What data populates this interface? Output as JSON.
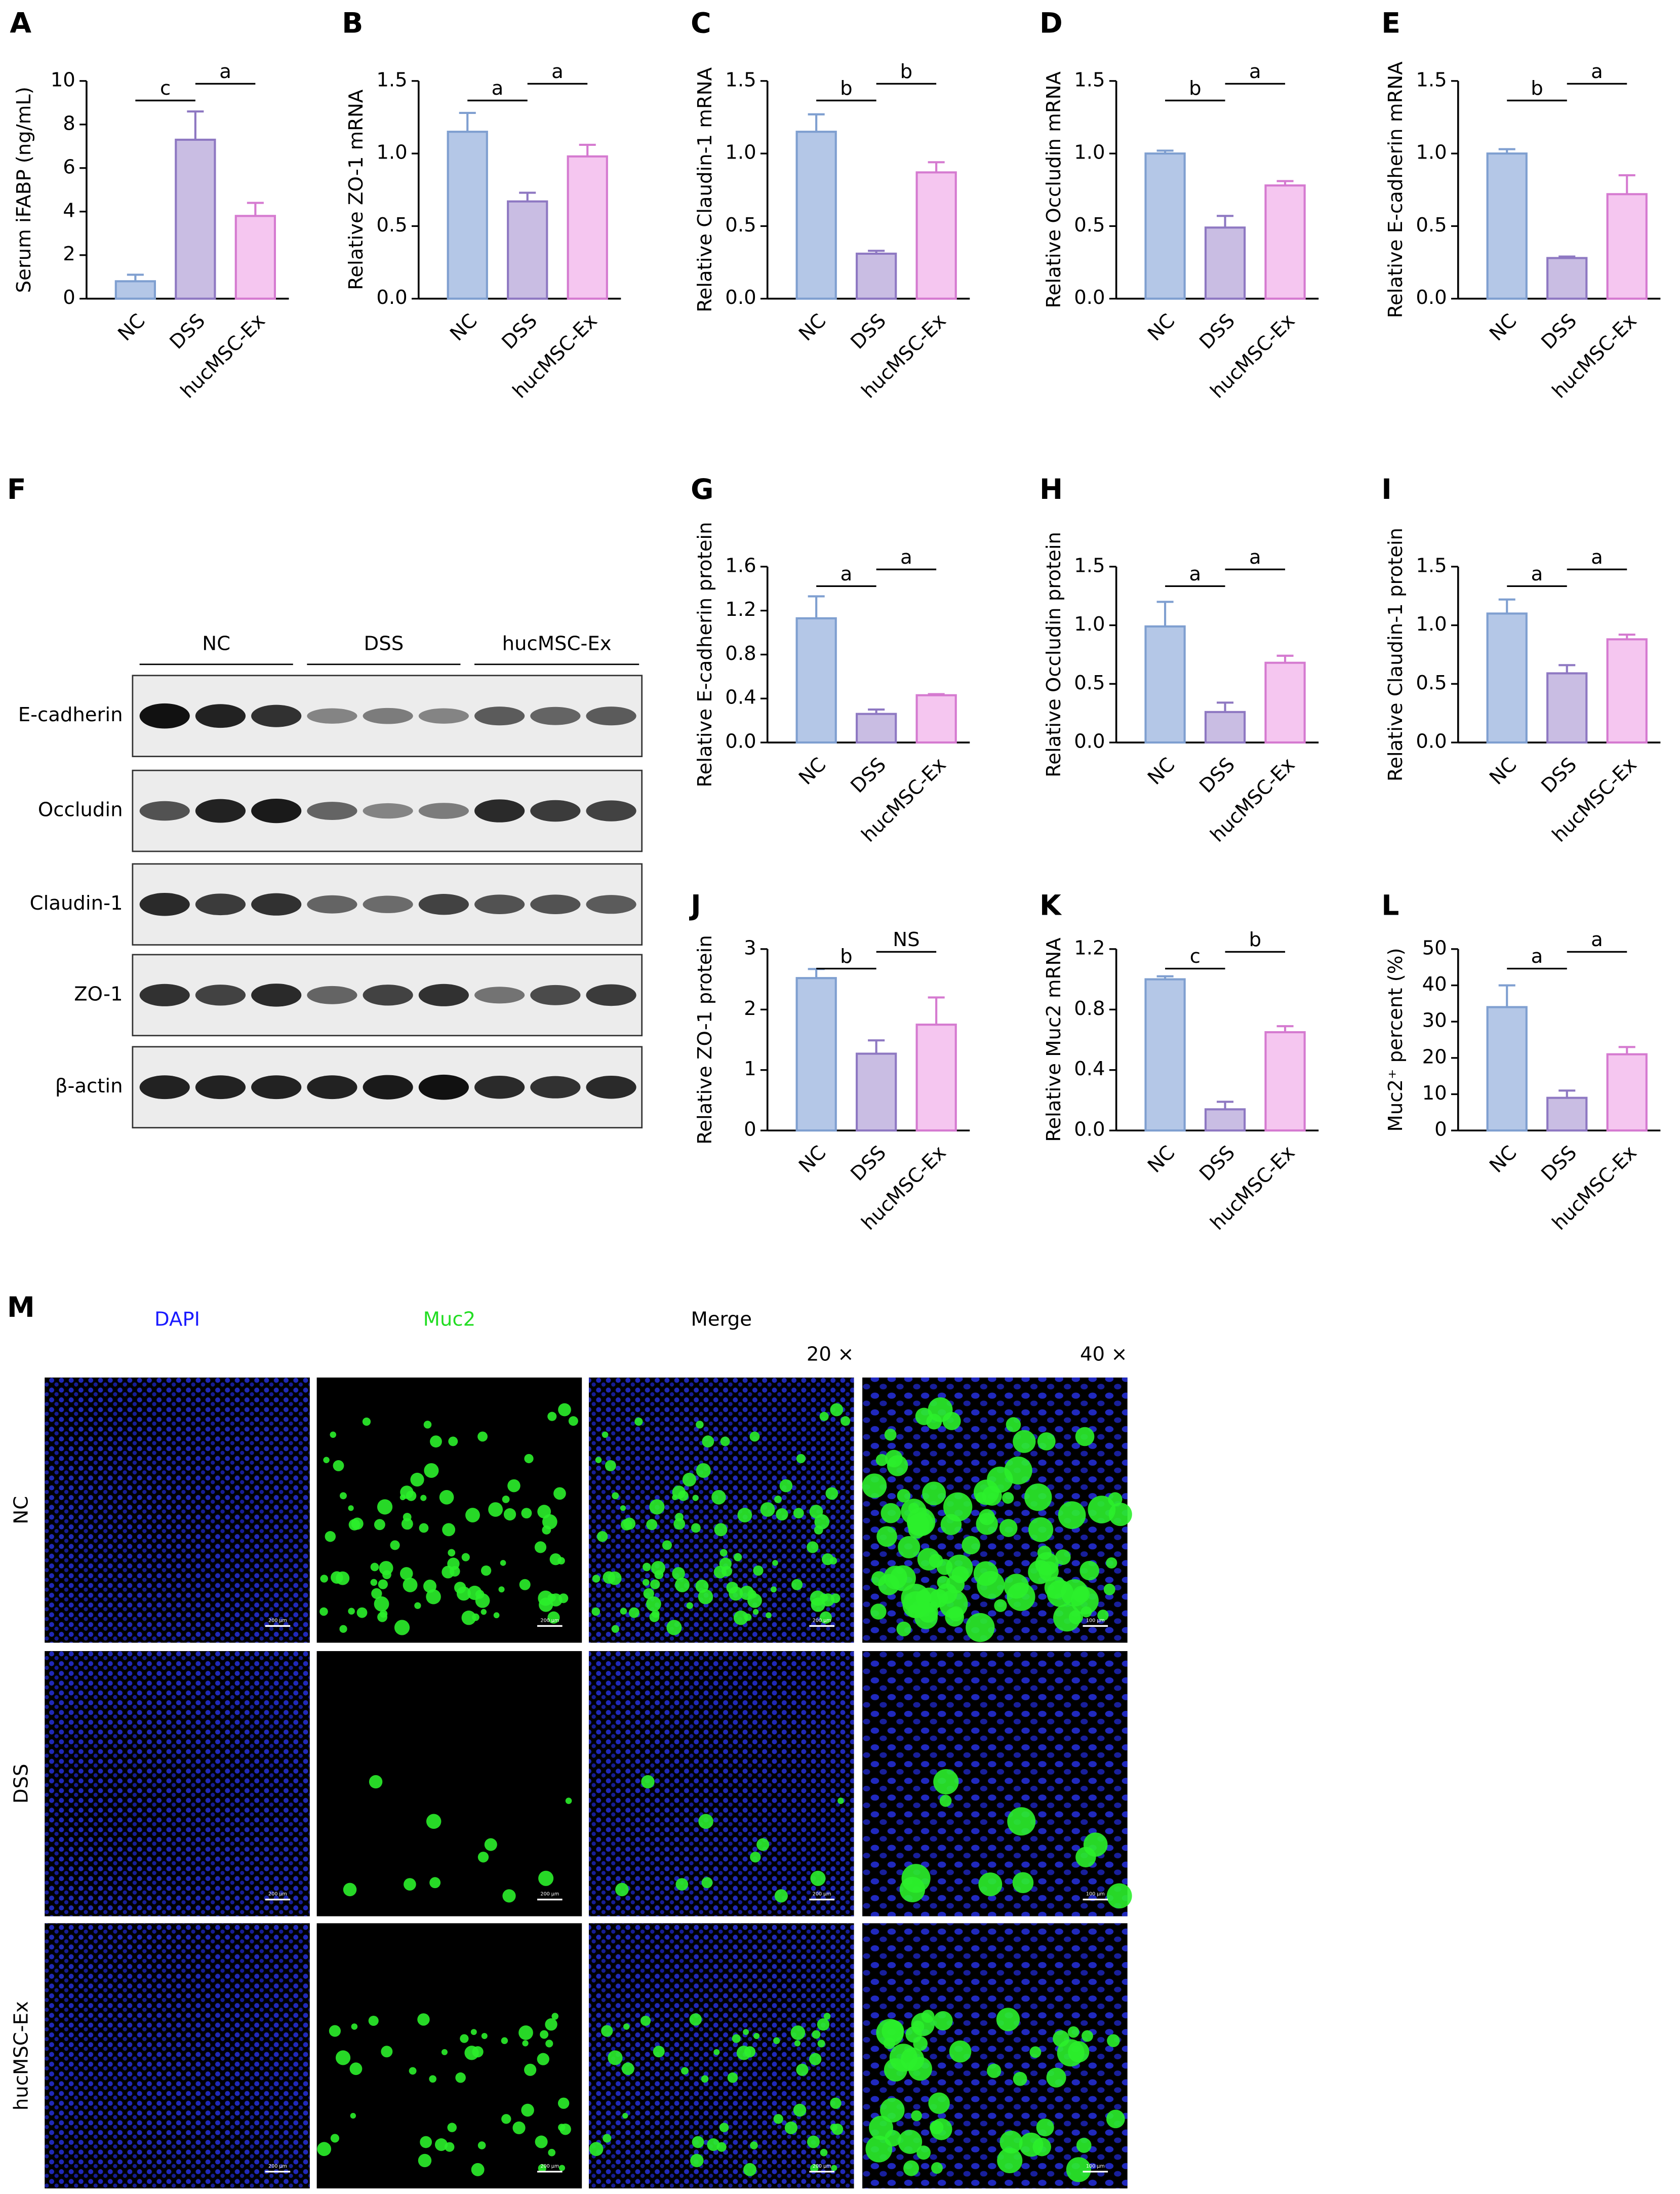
{
  "chart_data": [
    {
      "panel": "A",
      "type": "bar",
      "ylabel": "Serum iFABP (ng/mL)",
      "categories": [
        "NC",
        "DSS",
        "hucMSC-Ex"
      ],
      "values": [
        0.8,
        7.3,
        3.8
      ],
      "errors": [
        0.3,
        1.3,
        0.6
      ],
      "colors": [
        "#b4c7e7",
        "#c9bde3",
        "#f5c6f0"
      ],
      "edge_colors": [
        "#7f9fd0",
        "#8e78c2",
        "#d57ad0"
      ],
      "ylim": [
        0,
        10
      ],
      "yticks": [
        0,
        2,
        4,
        6,
        8,
        10
      ],
      "significance": [
        "c",
        "a"
      ]
    },
    {
      "panel": "B",
      "type": "bar",
      "ylabel": "Relative ZO-1 mRNA",
      "categories": [
        "NC",
        "DSS",
        "hucMSC-Ex"
      ],
      "values": [
        1.15,
        0.67,
        0.98
      ],
      "errors": [
        0.13,
        0.06,
        0.08
      ],
      "colors": [
        "#b4c7e7",
        "#c9bde3",
        "#f5c6f0"
      ],
      "edge_colors": [
        "#7f9fd0",
        "#8e78c2",
        "#d57ad0"
      ],
      "ylim": [
        0,
        1.5
      ],
      "yticks": [
        {
          "value": 0,
          "label": "0.0"
        },
        0.5,
        {
          "value": 1,
          "label": "1.0"
        },
        1.5
      ],
      "significance": [
        "a",
        "a"
      ]
    },
    {
      "panel": "C",
      "type": "bar",
      "ylabel": "Relative Claudin-1 mRNA",
      "categories": [
        "NC",
        "DSS",
        "hucMSC-Ex"
      ],
      "values": [
        1.15,
        0.31,
        0.87
      ],
      "errors": [
        0.12,
        0.02,
        0.07
      ],
      "colors": [
        "#b4c7e7",
        "#c9bde3",
        "#f5c6f0"
      ],
      "edge_colors": [
        "#7f9fd0",
        "#8e78c2",
        "#d57ad0"
      ],
      "ylim": [
        0,
        1.5
      ],
      "yticks": [
        {
          "value": 0,
          "label": "0.0"
        },
        0.5,
        {
          "value": 1,
          "label": "1.0"
        },
        1.5
      ],
      "significance": [
        "b",
        "b"
      ]
    },
    {
      "panel": "D",
      "type": "bar",
      "ylabel": "Relative Occludin mRNA",
      "categories": [
        "NC",
        "DSS",
        "hucMSC-Ex"
      ],
      "values": [
        1.0,
        0.49,
        0.78
      ],
      "errors": [
        0.02,
        0.08,
        0.03
      ],
      "colors": [
        "#b4c7e7",
        "#c9bde3",
        "#f5c6f0"
      ],
      "edge_colors": [
        "#7f9fd0",
        "#8e78c2",
        "#d57ad0"
      ],
      "ylim": [
        0,
        1.5
      ],
      "yticks": [
        {
          "value": 0,
          "label": "0.0"
        },
        0.5,
        {
          "value": 1,
          "label": "1.0"
        },
        1.5
      ],
      "significance": [
        "b",
        "a"
      ]
    },
    {
      "panel": "E",
      "type": "bar",
      "ylabel": "Relative E-cadherin mRNA",
      "categories": [
        "NC",
        "DSS",
        "hucMSC-Ex"
      ],
      "values": [
        1.0,
        0.28,
        0.72
      ],
      "errors": [
        0.03,
        0.01,
        0.13
      ],
      "colors": [
        "#b4c7e7",
        "#c9bde3",
        "#f5c6f0"
      ],
      "edge_colors": [
        "#7f9fd0",
        "#8e78c2",
        "#d57ad0"
      ],
      "ylim": [
        0,
        1.5
      ],
      "yticks": [
        {
          "value": 0,
          "label": "0.0"
        },
        0.5,
        {
          "value": 1,
          "label": "1.0"
        },
        1.5
      ],
      "significance": [
        "b",
        "a"
      ]
    },
    {
      "panel": "G",
      "type": "bar",
      "ylabel": "Relative E-cadherin protein",
      "categories": [
        "NC",
        "DSS",
        "hucMSC-Ex"
      ],
      "values": [
        1.13,
        0.26,
        0.43
      ],
      "errors": [
        0.2,
        0.04,
        0.01
      ],
      "colors": [
        "#b4c7e7",
        "#c9bde3",
        "#f5c6f0"
      ],
      "edge_colors": [
        "#7f9fd0",
        "#8e78c2",
        "#d57ad0"
      ],
      "ylim": [
        0,
        1.6
      ],
      "yticks": [
        {
          "value": 0,
          "label": "0.0"
        },
        0.4,
        0.8,
        1.2,
        1.6
      ],
      "significance": [
        "a",
        "a"
      ]
    },
    {
      "panel": "H",
      "type": "bar",
      "ylabel": "Relative Occludin protein",
      "categories": [
        "NC",
        "DSS",
        "hucMSC-Ex"
      ],
      "values": [
        0.99,
        0.26,
        0.68
      ],
      "errors": [
        0.21,
        0.08,
        0.06
      ],
      "colors": [
        "#b4c7e7",
        "#c9bde3",
        "#f5c6f0"
      ],
      "edge_colors": [
        "#7f9fd0",
        "#8e78c2",
        "#d57ad0"
      ],
      "ylim": [
        0,
        1.5
      ],
      "yticks": [
        {
          "value": 0,
          "label": "0.0"
        },
        0.5,
        {
          "value": 1,
          "label": "1.0"
        },
        1.5
      ],
      "significance": [
        "a",
        "a"
      ]
    },
    {
      "panel": "I",
      "type": "bar",
      "ylabel": "Relative Claudin-1 protein",
      "categories": [
        "NC",
        "DSS",
        "hucMSC-Ex"
      ],
      "values": [
        1.1,
        0.59,
        0.88
      ],
      "errors": [
        0.12,
        0.07,
        0.04
      ],
      "colors": [
        "#b4c7e7",
        "#c9bde3",
        "#f5c6f0"
      ],
      "edge_colors": [
        "#7f9fd0",
        "#8e78c2",
        "#d57ad0"
      ],
      "ylim": [
        0,
        1.5
      ],
      "yticks": [
        {
          "value": 0,
          "label": "0.0"
        },
        0.5,
        {
          "value": 1,
          "label": "1.0"
        },
        1.5
      ],
      "significance": [
        "a",
        "a"
      ]
    },
    {
      "panel": "J",
      "type": "bar",
      "ylabel": "Relative ZO-1 protein",
      "categories": [
        "NC",
        "DSS",
        "hucMSC-Ex"
      ],
      "values": [
        2.52,
        1.27,
        1.75
      ],
      "errors": [
        0.15,
        0.22,
        0.45
      ],
      "colors": [
        "#b4c7e7",
        "#c9bde3",
        "#f5c6f0"
      ],
      "edge_colors": [
        "#7f9fd0",
        "#8e78c2",
        "#d57ad0"
      ],
      "ylim": [
        0,
        3
      ],
      "yticks": [
        0,
        1,
        2,
        3
      ],
      "significance": [
        "b",
        "NS"
      ]
    },
    {
      "panel": "K",
      "type": "bar",
      "ylabel": "Relative Muc2 mRNA",
      "categories": [
        "NC",
        "DSS",
        "hucMSC-Ex"
      ],
      "values": [
        1.0,
        0.14,
        0.65
      ],
      "errors": [
        0.02,
        0.05,
        0.04
      ],
      "colors": [
        "#b4c7e7",
        "#c9bde3",
        "#f5c6f0"
      ],
      "edge_colors": [
        "#7f9fd0",
        "#8e78c2",
        "#d57ad0"
      ],
      "ylim": [
        0,
        1.2
      ],
      "yticks": [
        {
          "value": 0,
          "label": "0.0"
        },
        0.4,
        0.8,
        1.2
      ],
      "significance": [
        "c",
        "b"
      ]
    },
    {
      "panel": "L",
      "type": "bar",
      "ylabel": "Muc2⁺ percent (%)",
      "categories": [
        "NC",
        "DSS",
        "hucMSC-Ex"
      ],
      "values": [
        34,
        9,
        21
      ],
      "errors": [
        6,
        2,
        2
      ],
      "colors": [
        "#b4c7e7",
        "#c9bde3",
        "#f5c6f0"
      ],
      "edge_colors": [
        "#7f9fd0",
        "#8e78c2",
        "#d57ad0"
      ],
      "ylim": [
        0,
        50
      ],
      "yticks": [
        0,
        10,
        20,
        30,
        40,
        50
      ],
      "significance": [
        "a",
        "a"
      ]
    }
  ],
  "blot": {
    "panel": "F",
    "groups": [
      "NC",
      "DSS",
      "hucMSC-Ex"
    ],
    "rows": [
      "E-cadherin",
      "Occludin",
      "Claudin-1",
      "ZO-1",
      "β-actin"
    ]
  },
  "immunofluorescence": {
    "panel": "M",
    "columns": [
      "DAPI",
      "Muc2",
      "Merge"
    ],
    "magnifications": [
      "20 ×",
      "40 ×"
    ],
    "rows": [
      "NC",
      "DSS",
      "hucMSC-Ex"
    ],
    "scale_bar_20x": "200 μm",
    "scale_bar_40x": "100 μm"
  }
}
